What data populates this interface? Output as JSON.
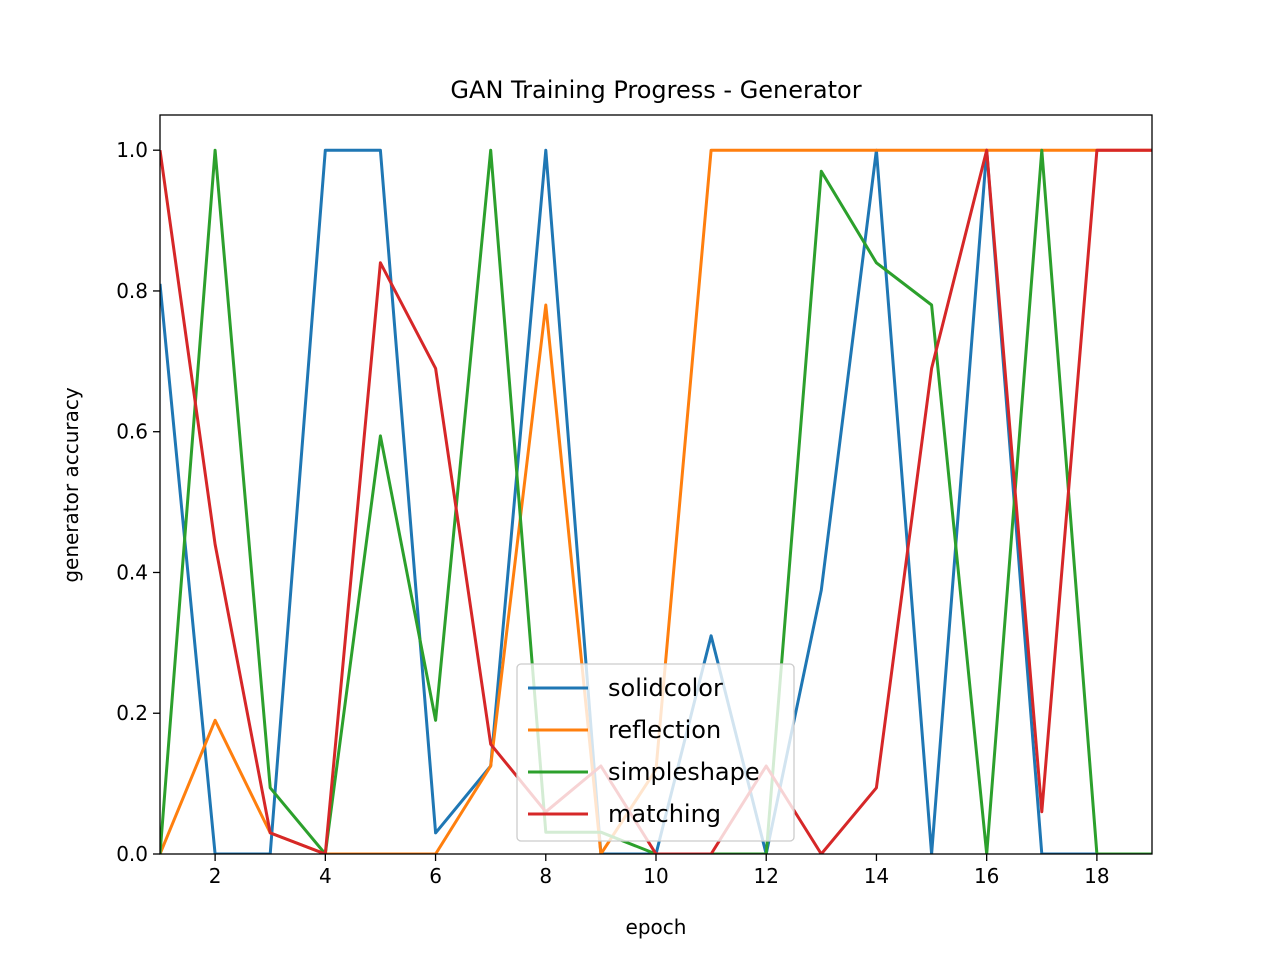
{
  "chart_data": {
    "type": "line",
    "title": "GAN Training Progress - Generator",
    "xlabel": "epoch",
    "ylabel": "generator accuracy",
    "xlim": [
      1,
      19
    ],
    "ylim": [
      0,
      1.05
    ],
    "xticks": [
      2,
      4,
      6,
      8,
      10,
      12,
      14,
      16,
      18
    ],
    "xtick_labels": [
      "2",
      "4",
      "6",
      "8",
      "10",
      "12",
      "14",
      "16",
      "18"
    ],
    "yticks": [
      0,
      0.2,
      0.4,
      0.6,
      0.8,
      1.0
    ],
    "ytick_labels": [
      "0.0",
      "0.2",
      "0.4",
      "0.6",
      "0.8",
      "1.0"
    ],
    "grid": false,
    "legend_position": "lower center",
    "x": [
      1,
      2,
      3,
      4,
      5,
      6,
      7,
      8,
      9,
      10,
      11,
      12,
      13,
      14,
      15,
      16,
      17,
      18,
      19
    ],
    "series": [
      {
        "name": "solidcolor",
        "color": "#1f77b4",
        "values": [
          0.81,
          0.0,
          0.0,
          1.0,
          1.0,
          0.03,
          0.125,
          1.0,
          0.0,
          0.0,
          0.31,
          0.0,
          0.375,
          1.0,
          0.0,
          1.0,
          0.0,
          0.0,
          0.0
        ]
      },
      {
        "name": "reflection",
        "color": "#ff7f0e",
        "values": [
          0.0,
          0.19,
          0.03,
          0.0,
          0.0,
          0.0,
          0.125,
          0.78,
          0.0,
          0.12,
          1.0,
          1.0,
          1.0,
          1.0,
          1.0,
          1.0,
          1.0,
          1.0,
          1.0
        ]
      },
      {
        "name": "simpleshape",
        "color": "#2ca02c",
        "values": [
          0.0,
          1.0,
          0.094,
          0.0,
          0.594,
          0.19,
          1.0,
          0.031,
          0.031,
          0.0,
          0.0,
          0.0,
          0.97,
          0.84,
          0.78,
          0.0,
          1.0,
          0.0,
          0.0
        ]
      },
      {
        "name": "matching",
        "color": "#d62728",
        "values": [
          1.0,
          0.44,
          0.03,
          0.0,
          0.84,
          0.69,
          0.156,
          0.06,
          0.125,
          0.0,
          0.0,
          0.125,
          0.0,
          0.094,
          0.69,
          1.0,
          0.06,
          1.0,
          1.0
        ]
      }
    ]
  }
}
